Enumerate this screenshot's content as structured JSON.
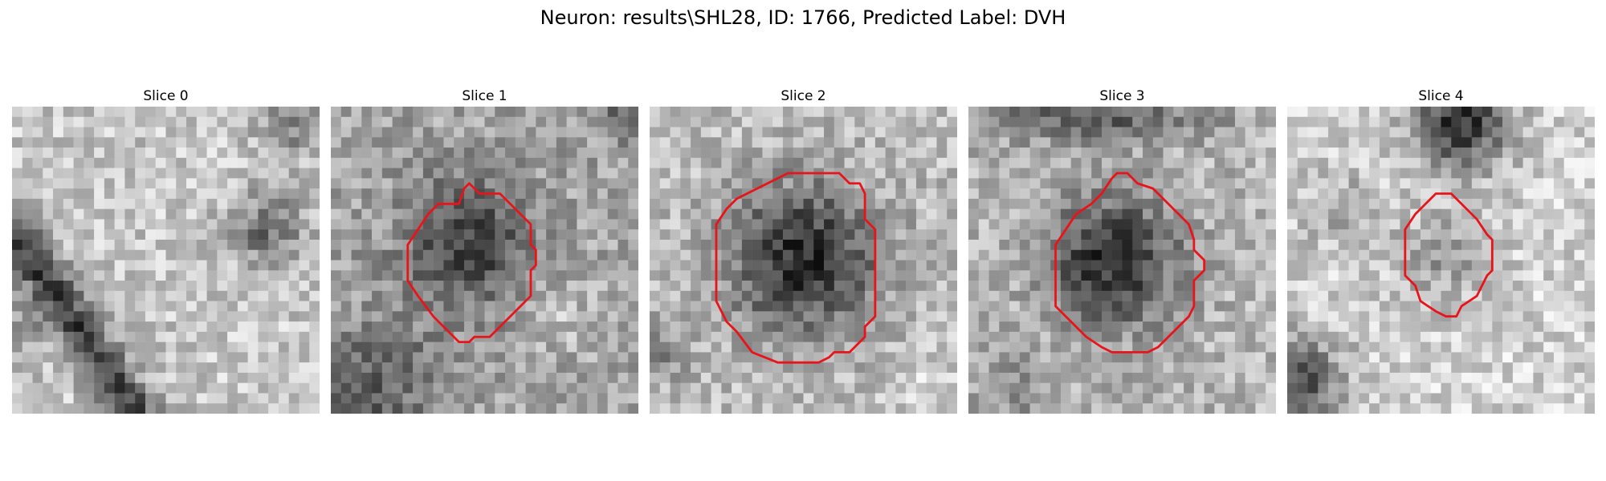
{
  "figure": {
    "title": "Neuron: results\\SHL28, ID: 1766, Predicted Label: DVH"
  },
  "slices": [
    {
      "title": "Slice 0"
    },
    {
      "title": "Slice 1"
    },
    {
      "title": "Slice 2"
    },
    {
      "title": "Slice 3"
    },
    {
      "title": "Slice 4"
    }
  ],
  "colors": {
    "contour": "#e8141a"
  }
}
